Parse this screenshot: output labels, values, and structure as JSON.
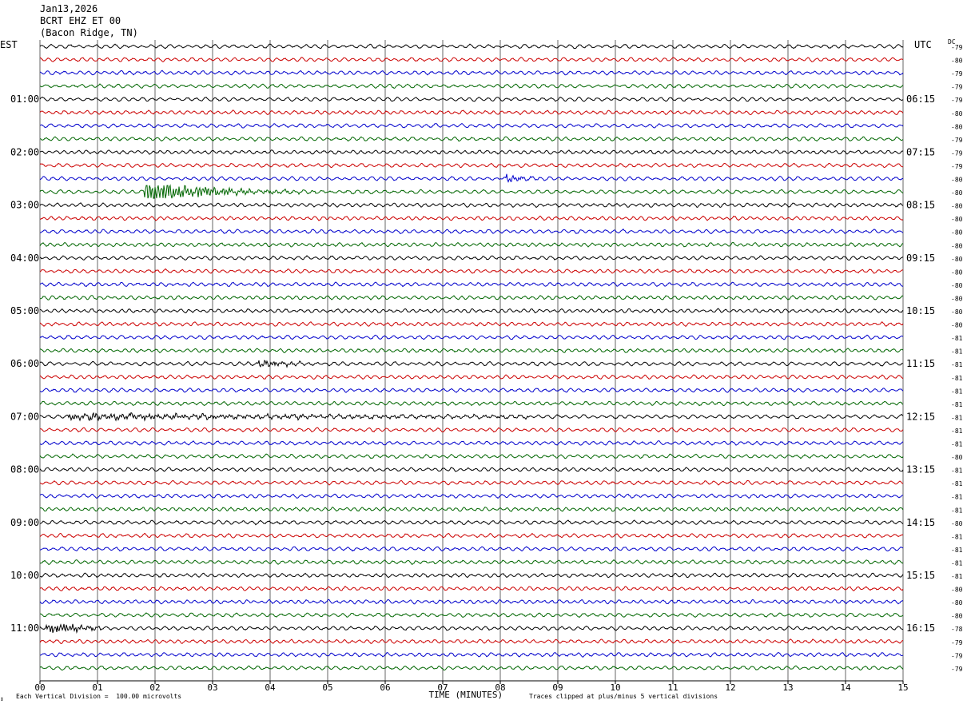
{
  "header": {
    "date": "Jan13,2026",
    "station": "BCRT EHZ ET 00",
    "location": "(Bacon Ridge, TN)"
  },
  "left_timezone": "EST",
  "right_timezone": "UTC",
  "dc_label": "DC",
  "footer": {
    "scale_note": "Each Vertical Division =  100.00 microvolts",
    "clip_note": "Traces clipped at plus/minus 5 vertical divisions",
    "corner_mark": "↕"
  },
  "colors": {
    "row0": "#000000",
    "row1": "#cc0000",
    "row2": "#0000cc",
    "row3": "#006600",
    "grid": "#000000"
  },
  "chart_data": {
    "type": "line",
    "title": "BCRT EHZ ET 00",
    "xlabel": "TIME (MINUTES)",
    "x_ticks": [
      "00",
      "01",
      "02",
      "03",
      "04",
      "05",
      "06",
      "07",
      "08",
      "09",
      "10",
      "11",
      "12",
      "13",
      "14",
      "15"
    ],
    "xlim": [
      0,
      15
    ],
    "trace_count": 48,
    "left_hour_labels": [
      "01:00",
      "02:00",
      "03:00",
      "04:00",
      "05:00",
      "06:00",
      "07:00",
      "08:00",
      "09:00",
      "10:00",
      "11:00"
    ],
    "right_hour_labels": [
      "06:15",
      "07:15",
      "08:15",
      "09:15",
      "10:15",
      "11:15",
      "12:15",
      "13:15",
      "14:15",
      "15:15",
      "16:15"
    ],
    "dc_values": [
      -79,
      -80,
      -79,
      -79,
      -79,
      -80,
      -80,
      -79,
      -79,
      -79,
      -80,
      -80,
      -80,
      -80,
      -80,
      -80,
      -80,
      -80,
      -80,
      -80,
      -80,
      -80,
      -81,
      -81,
      -81,
      -81,
      -81,
      -81,
      -81,
      -81,
      -81,
      -80,
      -81,
      -81,
      -81,
      -81,
      -80,
      -81,
      -81,
      -81,
      -81,
      -80,
      -80,
      -80,
      -78,
      -79,
      -79,
      -79
    ],
    "events": [
      {
        "trace": 11,
        "start_min": 1.8,
        "peak_amp": 5.0,
        "decay_min": 0.9,
        "duration_min": 5.0
      },
      {
        "trace": 10,
        "start_min": 8.1,
        "peak_amp": 1.4,
        "decay_min": 0.25,
        "duration_min": 1.0
      },
      {
        "trace": 24,
        "start_min": 3.8,
        "peak_amp": 1.0,
        "decay_min": 0.6,
        "duration_min": 1.2
      },
      {
        "trace": 44,
        "start_min": 0.1,
        "peak_amp": 2.5,
        "decay_min": 0.5,
        "duration_min": 1.0
      },
      {
        "trace": 28,
        "start_min": 0.5,
        "peak_amp": 0.9,
        "decay_min": 6.0,
        "duration_min": 8.0
      }
    ]
  }
}
